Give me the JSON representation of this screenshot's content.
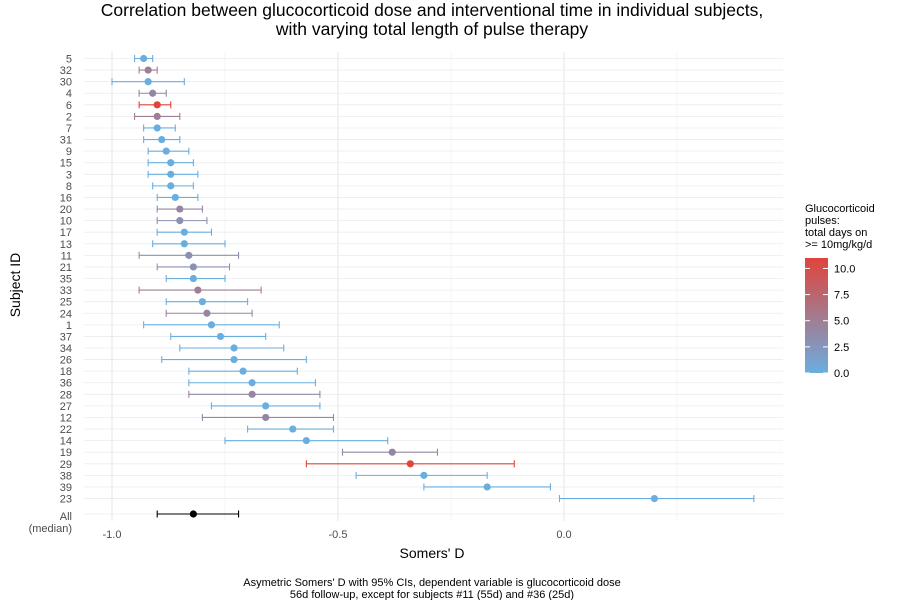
{
  "chart_data": {
    "type": "forest",
    "title_lines": [
      "Correlation between glucocorticoid dose and interventional time in individual subjects,",
      "with varying total length of pulse therapy"
    ],
    "xlabel": "Somers' D",
    "ylabel": "Subject ID",
    "xlim": [
      -1.05,
      0.48
    ],
    "xticks": [
      {
        "value": -1.0,
        "label": "-1.0"
      },
      {
        "value": -0.5,
        "label": "-0.5"
      },
      {
        "value": 0.0,
        "label": "0.0"
      }
    ],
    "grid": true,
    "legend": {
      "title_lines": [
        "Glucocorticoid",
        "pulses:",
        "total days on",
        ">= 10mg/kg/d"
      ],
      "placement": "right",
      "range": [
        0,
        11
      ],
      "ticks": [
        {
          "value": 10.0,
          "label": "10.0"
        },
        {
          "value": 7.5,
          "label": "7.5"
        },
        {
          "value": 5.0,
          "label": "5.0"
        },
        {
          "value": 2.5,
          "label": "2.5"
        },
        {
          "value": 0.0,
          "label": "0.0"
        }
      ],
      "low_color": "#6aaee0",
      "high_color": "#e0443b"
    },
    "caption_lines": [
      "Asymetric Somers' D with 95% CIs, dependent variable is glucocorticoid dose",
      "56d follow-up, except for subjects #11 (55d) and #36 (25d)"
    ],
    "subjects": [
      {
        "id": "5",
        "d": -0.93,
        "lo": -0.95,
        "hi": -0.91,
        "pulses": 0
      },
      {
        "id": "32",
        "d": -0.92,
        "lo": -0.94,
        "hi": -0.9,
        "pulses": 5
      },
      {
        "id": "30",
        "d": -0.92,
        "lo": -1.0,
        "hi": -0.84,
        "pulses": 0
      },
      {
        "id": "4",
        "d": -0.91,
        "lo": -0.94,
        "hi": -0.88,
        "pulses": 4
      },
      {
        "id": "6",
        "d": -0.9,
        "lo": -0.94,
        "hi": -0.87,
        "pulses": 11
      },
      {
        "id": "2",
        "d": -0.9,
        "lo": -0.95,
        "hi": -0.85,
        "pulses": 5
      },
      {
        "id": "7",
        "d": -0.9,
        "lo": -0.93,
        "hi": -0.86,
        "pulses": 0
      },
      {
        "id": "31",
        "d": -0.89,
        "lo": -0.93,
        "hi": -0.85,
        "pulses": 0
      },
      {
        "id": "9",
        "d": -0.88,
        "lo": -0.92,
        "hi": -0.83,
        "pulses": 0
      },
      {
        "id": "15",
        "d": -0.87,
        "lo": -0.92,
        "hi": -0.82,
        "pulses": 0
      },
      {
        "id": "3",
        "d": -0.87,
        "lo": -0.92,
        "hi": -0.81,
        "pulses": 0
      },
      {
        "id": "8",
        "d": -0.87,
        "lo": -0.91,
        "hi": -0.82,
        "pulses": 0
      },
      {
        "id": "16",
        "d": -0.86,
        "lo": -0.9,
        "hi": -0.81,
        "pulses": 0
      },
      {
        "id": "20",
        "d": -0.85,
        "lo": -0.9,
        "hi": -0.8,
        "pulses": 4
      },
      {
        "id": "10",
        "d": -0.85,
        "lo": -0.9,
        "hi": -0.79,
        "pulses": 3
      },
      {
        "id": "17",
        "d": -0.84,
        "lo": -0.9,
        "hi": -0.78,
        "pulses": 0
      },
      {
        "id": "13",
        "d": -0.84,
        "lo": -0.91,
        "hi": -0.75,
        "pulses": 0
      },
      {
        "id": "11",
        "d": -0.83,
        "lo": -0.94,
        "hi": -0.72,
        "pulses": 3
      },
      {
        "id": "21",
        "d": -0.82,
        "lo": -0.9,
        "hi": -0.74,
        "pulses": 3
      },
      {
        "id": "35",
        "d": -0.82,
        "lo": -0.88,
        "hi": -0.75,
        "pulses": 0
      },
      {
        "id": "33",
        "d": -0.81,
        "lo": -0.94,
        "hi": -0.67,
        "pulses": 5
      },
      {
        "id": "25",
        "d": -0.8,
        "lo": -0.88,
        "hi": -0.7,
        "pulses": 0
      },
      {
        "id": "24",
        "d": -0.79,
        "lo": -0.88,
        "hi": -0.69,
        "pulses": 4
      },
      {
        "id": "1",
        "d": -0.78,
        "lo": -0.93,
        "hi": -0.63,
        "pulses": 0
      },
      {
        "id": "37",
        "d": -0.76,
        "lo": -0.87,
        "hi": -0.66,
        "pulses": 0
      },
      {
        "id": "34",
        "d": -0.73,
        "lo": -0.85,
        "hi": -0.62,
        "pulses": 0
      },
      {
        "id": "26",
        "d": -0.73,
        "lo": -0.89,
        "hi": -0.57,
        "pulses": 0
      },
      {
        "id": "18",
        "d": -0.71,
        "lo": -0.83,
        "hi": -0.59,
        "pulses": 0
      },
      {
        "id": "36",
        "d": -0.69,
        "lo": -0.83,
        "hi": -0.55,
        "pulses": 0
      },
      {
        "id": "28",
        "d": -0.69,
        "lo": -0.83,
        "hi": -0.54,
        "pulses": 4
      },
      {
        "id": "27",
        "d": -0.66,
        "lo": -0.78,
        "hi": -0.54,
        "pulses": 0
      },
      {
        "id": "12",
        "d": -0.66,
        "lo": -0.8,
        "hi": -0.51,
        "pulses": 4
      },
      {
        "id": "22",
        "d": -0.6,
        "lo": -0.7,
        "hi": -0.51,
        "pulses": 0
      },
      {
        "id": "14",
        "d": -0.57,
        "lo": -0.75,
        "hi": -0.39,
        "pulses": 0
      },
      {
        "id": "19",
        "d": -0.38,
        "lo": -0.49,
        "hi": -0.28,
        "pulses": 4
      },
      {
        "id": "29",
        "d": -0.34,
        "lo": -0.57,
        "hi": -0.11,
        "pulses": 11
      },
      {
        "id": "38",
        "d": -0.31,
        "lo": -0.46,
        "hi": -0.17,
        "pulses": 0
      },
      {
        "id": "39",
        "d": -0.17,
        "lo": -0.31,
        "hi": -0.03,
        "pulses": 0
      },
      {
        "id": "23",
        "d": 0.2,
        "lo": -0.01,
        "hi": 0.42,
        "pulses": 0
      }
    ],
    "summary": {
      "label_lines": [
        "All",
        "(median)"
      ],
      "d": -0.82,
      "lo": -0.9,
      "hi": -0.72,
      "color": "#000000"
    }
  }
}
